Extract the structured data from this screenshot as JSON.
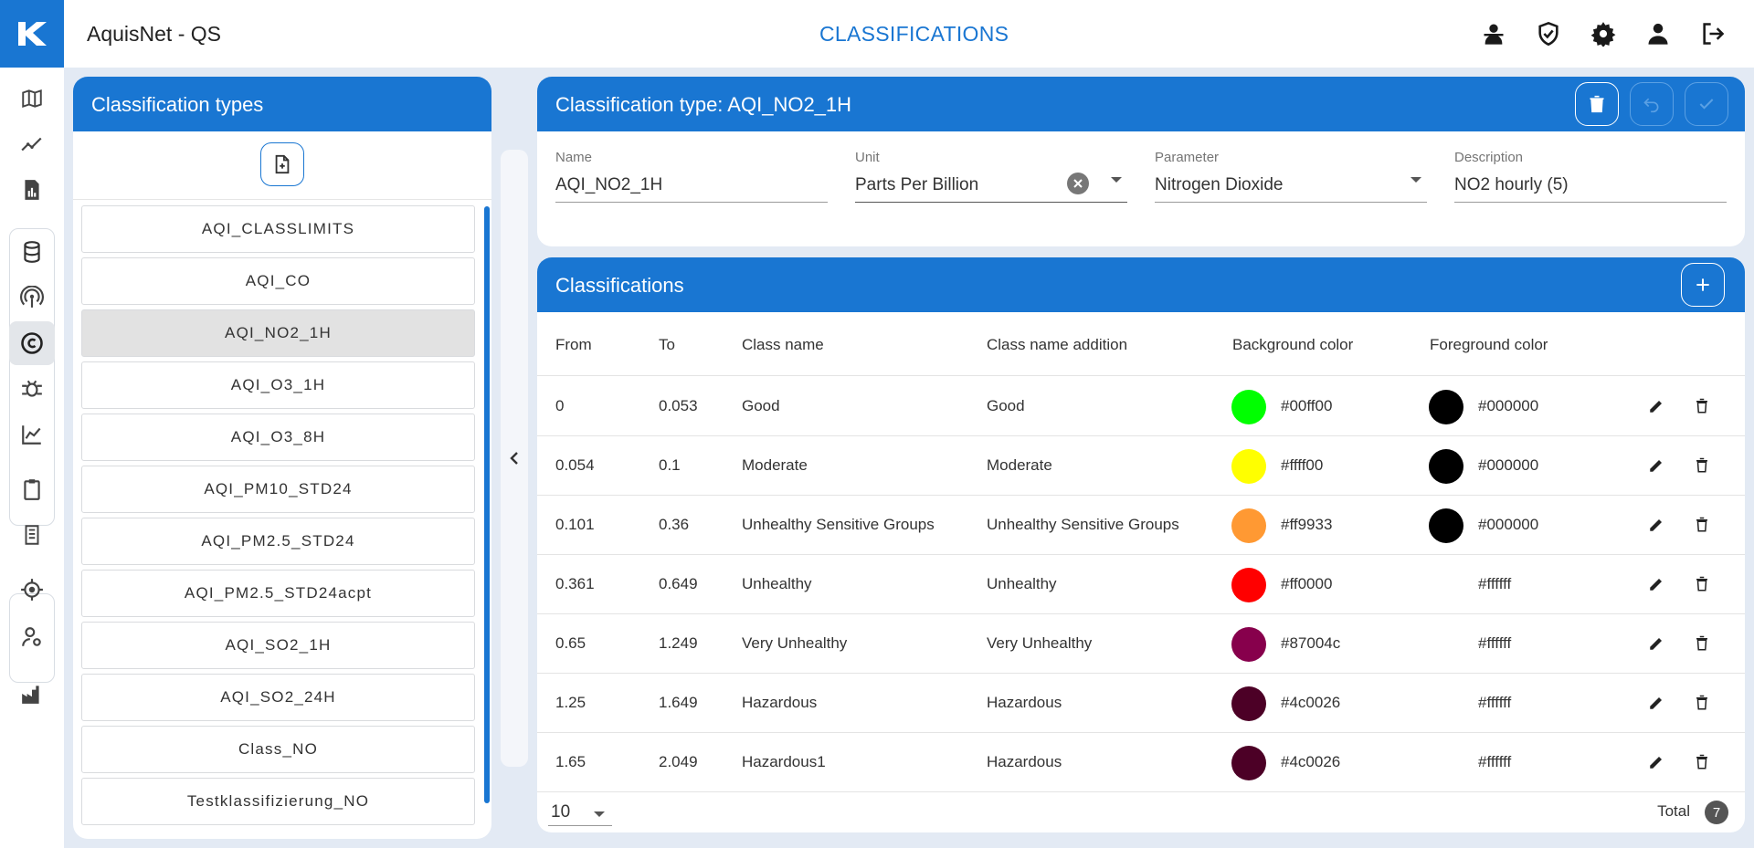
{
  "app": {
    "title": "AquisNet - QS",
    "page_title": "CLASSIFICATIONS"
  },
  "top_icons": [
    "person-outline-icon",
    "shield-check-icon",
    "gear-icon",
    "user-icon",
    "logout-icon"
  ],
  "nav_icons": [
    "map-icon",
    "line-chart-icon",
    "report-icon",
    "database-icon",
    "antenna-icon",
    "copyright-icon",
    "bug-icon",
    "area-chart-icon",
    "clipboard-icon",
    "log-icon",
    "target-icon",
    "user-settings-icon",
    "station-icon"
  ],
  "list_panel": {
    "title": "Classification types",
    "items": [
      "AQI_CLASSLIMITS",
      "AQI_CO",
      "AQI_NO2_1H",
      "AQI_O3_1H",
      "AQI_O3_8H",
      "AQI_PM10_STD24",
      "AQI_PM2.5_STD24",
      "AQI_PM2.5_STD24acpt",
      "AQI_SO2_1H",
      "AQI_SO2_24H",
      "Class_NO",
      "Testklassifizierung_NO"
    ],
    "selected": "AQI_NO2_1H"
  },
  "type_panel": {
    "title": "Classification type: AQI_NO2_1H",
    "fields": {
      "name": {
        "label": "Name",
        "value": "AQI_NO2_1H"
      },
      "unit": {
        "label": "Unit",
        "value": "Parts Per Billion"
      },
      "parameter": {
        "label": "Parameter",
        "value": "Nitrogen Dioxide"
      },
      "description": {
        "label": "Description",
        "value": "NO2 hourly (5)"
      }
    }
  },
  "classifications": {
    "title": "Classifications",
    "columns": {
      "from": "From",
      "to": "To",
      "class_name": "Class name",
      "class_name_addition": "Class name addition",
      "background_color": "Background color",
      "foreground_color": "Foreground color"
    },
    "rows": [
      {
        "from": "0",
        "to": "0.053",
        "name": "Good",
        "addition": "Good",
        "bg": "#00ff00",
        "fg": "#000000"
      },
      {
        "from": "0.054",
        "to": "0.1",
        "name": "Moderate",
        "addition": "Moderate",
        "bg": "#ffff00",
        "fg": "#000000"
      },
      {
        "from": "0.101",
        "to": "0.36",
        "name": "Unhealthy Sensitive Groups",
        "addition": "Unhealthy Sensitive Groups",
        "bg": "#ff9933",
        "fg": "#000000"
      },
      {
        "from": "0.361",
        "to": "0.649",
        "name": "Unhealthy",
        "addition": "Unhealthy",
        "bg": "#ff0000",
        "fg": "#ffffff"
      },
      {
        "from": "0.65",
        "to": "1.249",
        "name": "Very Unhealthy",
        "addition": "Very Unhealthy",
        "bg": "#87004c",
        "fg": "#ffffff"
      },
      {
        "from": "1.25",
        "to": "1.649",
        "name": "Hazardous",
        "addition": "Hazardous",
        "bg": "#4c0026",
        "fg": "#ffffff"
      },
      {
        "from": "1.65",
        "to": "2.049",
        "name": "Hazardous1",
        "addition": "Hazardous",
        "bg": "#4c0026",
        "fg": "#ffffff"
      }
    ],
    "page_size": "10",
    "total_label": "Total",
    "total": "7"
  }
}
